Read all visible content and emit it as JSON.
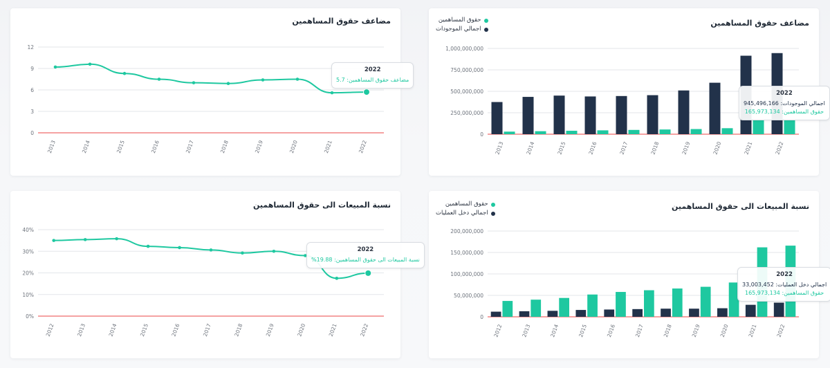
{
  "colors": {
    "navy": "#22324a",
    "green": "#1ec8a0",
    "zero_line": "#ef6a6a",
    "grid": "#e3e6ea"
  },
  "panels": {
    "equity_assets": {
      "title": "مضاعف حقوق المساهمين",
      "legend": [
        "حقوق المساهمين",
        "اجمالي الموجودات"
      ],
      "tooltip": {
        "year": "2022",
        "row1_label": "اجمالي الموجودات:",
        "row1_value": "945,496,166",
        "row2_label": "حقوق المساهمين:",
        "row2_value": "165,973,134"
      }
    },
    "multiplier": {
      "title": "مضاعف حقوق المساهمين",
      "tooltip": {
        "year": "2022",
        "row_label": "مضاعف حقوق المساهمين:",
        "row_value": "5.7"
      }
    },
    "sales_equity_bars": {
      "title": "نسبة المبيعات الى حقوق المساهمين",
      "legend": [
        "حقوق المساهمين",
        "اجمالي دخل العمليات"
      ],
      "tooltip": {
        "year": "2022",
        "row1_label": "اجمالي دخل العمليات:",
        "row1_value": "33,003,452",
        "row2_label": "حقوق المساهمين:",
        "row2_value": "165,973,134"
      }
    },
    "sales_ratio": {
      "title": "نسبة المبيعات الى حقوق المساهمين",
      "tooltip": {
        "year": "2022",
        "row_label": "نسبة المبيعات الى حقوق المساهمين:",
        "row_value": "%19.88"
      }
    }
  },
  "chart_data": [
    {
      "id": "equity_assets",
      "type": "bar",
      "title": "مضاعف حقوق المساهمين",
      "categories": [
        "2013",
        "2014",
        "2015",
        "2016",
        "2017",
        "2018",
        "2019",
        "2020",
        "2021",
        "2022"
      ],
      "series": [
        {
          "name": "اجمالي الموجودات",
          "values": [
            375000000,
            435000000,
            450000000,
            440000000,
            445000000,
            455000000,
            510000000,
            600000000,
            915000000,
            945496166
          ]
        },
        {
          "name": "حقوق المساهمين",
          "values": [
            30000000,
            35000000,
            40000000,
            45000000,
            50000000,
            55000000,
            60000000,
            70000000,
            165000000,
            165973134
          ]
        }
      ],
      "ylim": [
        0,
        1000000000
      ],
      "yticks": [
        0,
        250000000,
        500000000,
        750000000,
        1000000000
      ],
      "ytick_labels": [
        "0",
        "250,000,000",
        "500,000,000",
        "750,000,000",
        "1,000,000,000"
      ]
    },
    {
      "id": "multiplier",
      "type": "line",
      "title": "مضاعف حقوق المساهمين",
      "x": [
        "2013",
        "2014",
        "2015",
        "2016",
        "2017",
        "2018",
        "2019",
        "2020",
        "2021",
        "2022"
      ],
      "y": [
        9.2,
        9.6,
        8.3,
        7.5,
        7.0,
        6.9,
        7.4,
        7.5,
        5.6,
        5.7
      ],
      "ylim": [
        0,
        12
      ],
      "yticks": [
        0,
        3,
        6,
        9,
        12
      ],
      "ytick_labels": [
        "0",
        "3",
        "6",
        "9",
        "12"
      ]
    },
    {
      "id": "sales_equity_bars",
      "type": "bar",
      "title": "نسبة المبيعات الى حقوق المساهمين",
      "categories": [
        "2012",
        "2013",
        "2014",
        "2015",
        "2016",
        "2017",
        "2018",
        "2019",
        "2020",
        "2021",
        "2022"
      ],
      "series": [
        {
          "name": "اجمالي دخل العمليات",
          "values": [
            12000000,
            13000000,
            14000000,
            16000000,
            17000000,
            18000000,
            19000000,
            19000000,
            20000000,
            28000000,
            33003452
          ]
        },
        {
          "name": "حقوق المساهمين",
          "values": [
            37000000,
            40000000,
            44000000,
            52000000,
            58000000,
            62000000,
            66000000,
            70000000,
            80000000,
            162000000,
            165973134
          ]
        }
      ],
      "ylim": [
        0,
        200000000
      ],
      "yticks": [
        0,
        50000000,
        100000000,
        150000000,
        200000000
      ],
      "ytick_labels": [
        "0",
        "50,000,000",
        "100,000,000",
        "150,000,000",
        "200,000,000"
      ]
    },
    {
      "id": "sales_ratio",
      "type": "line",
      "title": "نسبة المبيعات الى حقوق المساهمين",
      "x": [
        "2012",
        "2013",
        "2014",
        "2015",
        "2016",
        "2017",
        "2018",
        "2019",
        "2020",
        "2021",
        "2022"
      ],
      "y": [
        35.0,
        35.4,
        35.8,
        32.3,
        31.7,
        30.6,
        29.2,
        30.0,
        28.0,
        17.5,
        19.88
      ],
      "ylim": [
        0,
        40
      ],
      "yticks": [
        0,
        10,
        20,
        30,
        40
      ],
      "ytick_labels": [
        "0%",
        "10%",
        "20%",
        "30%",
        "40%"
      ]
    }
  ]
}
